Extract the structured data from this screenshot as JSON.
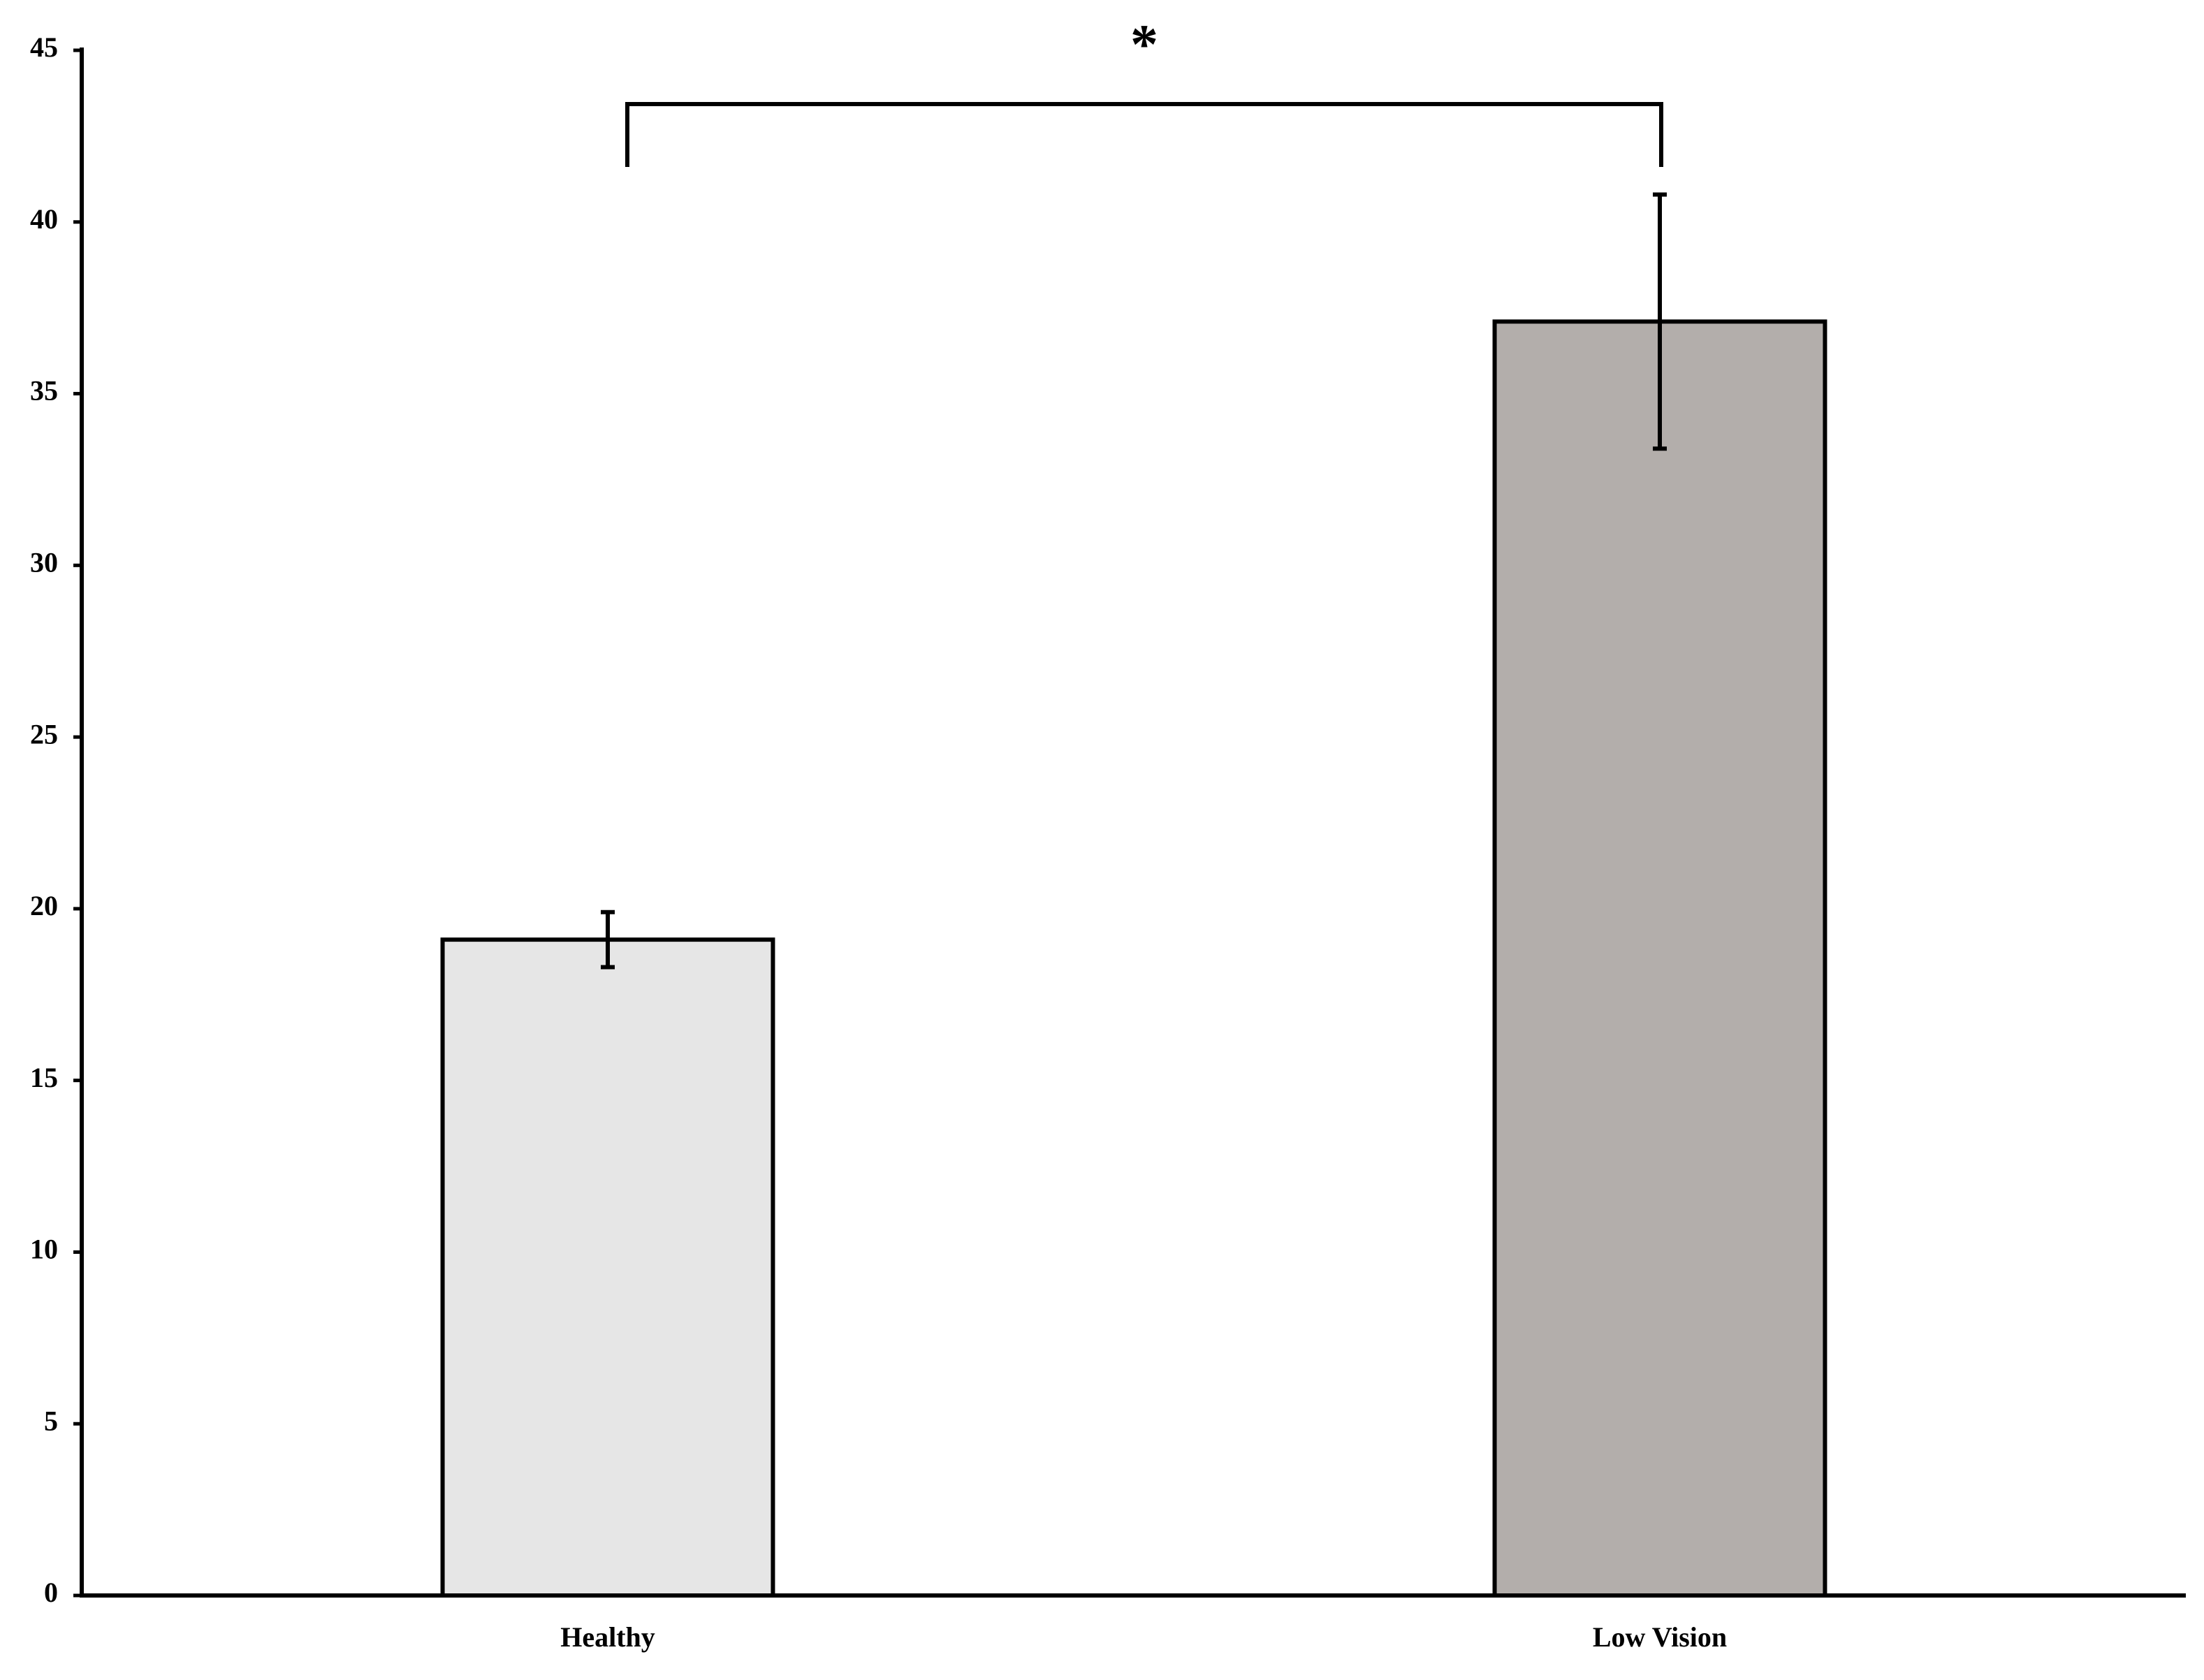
{
  "chart_data": {
    "type": "bar",
    "categories": [
      "Healthy",
      "Low Vision"
    ],
    "values": [
      19.1,
      37.1
    ],
    "errors": [
      0.8,
      3.7
    ],
    "colors": [
      "#e6e6e6",
      "#b3aeab"
    ],
    "ylim": [
      0,
      45
    ],
    "yticks": [
      0,
      5,
      10,
      15,
      20,
      25,
      30,
      35,
      40,
      45
    ],
    "grid": false,
    "annotation": "*"
  }
}
